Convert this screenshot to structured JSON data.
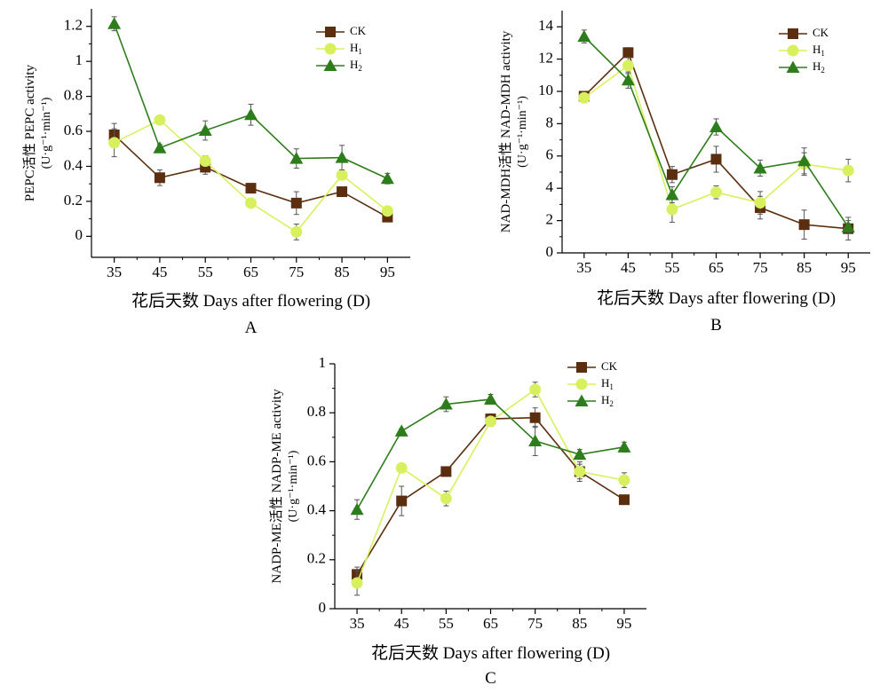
{
  "chart_data": [
    {
      "type": "line",
      "panel_label": "A",
      "xlabel": "花后天数  Days after flowering (D)",
      "ylabel": "PEPC活性 PEPC activity",
      "ylabel_unit": "(U·g⁻¹·min⁻¹)",
      "x": [
        35,
        45,
        55,
        65,
        75,
        85,
        95
      ],
      "xlim": [
        30,
        100
      ],
      "ylim": [
        -0.12,
        1.3
      ],
      "yticks": [
        0,
        0.2,
        0.4,
        0.6,
        0.8,
        1,
        1.2
      ],
      "ytick_labels": [
        "0",
        "0.2",
        "0.4",
        "0.6",
        "0.8",
        "1",
        "1.2"
      ],
      "legend_position": "top-right",
      "series": [
        {
          "name": "CK",
          "color": "#5a2e0e",
          "marker": "square",
          "values": [
            0.58,
            0.335,
            0.395,
            0.275,
            0.19,
            0.255,
            0.11
          ],
          "errors": [
            0.065,
            0.045,
            0.04,
            0.015,
            0.065,
            0.01,
            0.02
          ]
        },
        {
          "name": "H1",
          "color": "#d9f05e",
          "marker": "circle",
          "values": [
            0.535,
            0.665,
            0.43,
            0.19,
            0.025,
            0.35,
            0.145
          ],
          "errors": [
            0.08,
            0.02,
            0.03,
            0.015,
            0.045,
            0.02,
            0.025
          ]
        },
        {
          "name": "H2",
          "color": "#2e7d1c",
          "marker": "triangle",
          "values": [
            1.215,
            0.505,
            0.605,
            0.695,
            0.445,
            0.45,
            0.33
          ],
          "errors": [
            0.04,
            0.02,
            0.055,
            0.06,
            0.055,
            0.07,
            0.03
          ]
        }
      ]
    },
    {
      "type": "line",
      "panel_label": "B",
      "xlabel": "花后天数  Days after flowering (D)",
      "ylabel": "NAD-MDH活性 NAD-MDH activity",
      "ylabel_unit": "(U·g⁻¹·min⁻¹)",
      "x": [
        35,
        45,
        55,
        65,
        75,
        85,
        95
      ],
      "xlim": [
        30,
        100
      ],
      "ylim": [
        0,
        15
      ],
      "yticks": [
        0,
        2,
        4,
        6,
        8,
        10,
        12,
        14
      ],
      "ytick_labels": [
        "0",
        "2",
        "4",
        "6",
        "8",
        "10",
        "12",
        "14"
      ],
      "legend_position": "top-right",
      "series": [
        {
          "name": "CK",
          "color": "#5a2e0e",
          "marker": "square",
          "values": [
            9.7,
            12.4,
            4.85,
            5.8,
            2.8,
            1.75,
            1.5
          ],
          "errors": [
            0.3,
            0.3,
            0.5,
            0.8,
            0.7,
            0.9,
            0.7
          ]
        },
        {
          "name": "H1",
          "color": "#d9f05e",
          "marker": "circle",
          "values": [
            9.6,
            11.6,
            2.7,
            3.75,
            3.1,
            5.5,
            5.1
          ],
          "errors": [
            0.3,
            0.5,
            0.8,
            0.4,
            0.7,
            0.7,
            0.7
          ]
        },
        {
          "name": "H2",
          "color": "#2e7d1c",
          "marker": "triangle",
          "values": [
            13.4,
            10.7,
            3.6,
            7.8,
            5.25,
            5.7,
            1.6
          ],
          "errors": [
            0.4,
            0.5,
            0.5,
            0.5,
            0.5,
            0.8,
            0.4
          ]
        }
      ]
    },
    {
      "type": "line",
      "panel_label": "C",
      "xlabel": "花后天数  Days after flowering (D)",
      "ylabel": "NADP-ME活性 NADP-ME activity",
      "ylabel_unit": "(U·g⁻¹·min⁻¹)",
      "x": [
        35,
        45,
        55,
        65,
        75,
        85,
        95
      ],
      "xlim": [
        30,
        100
      ],
      "ylim": [
        0,
        1
      ],
      "yticks": [
        0,
        0.2,
        0.4,
        0.6,
        0.8,
        1
      ],
      "ytick_labels": [
        "0",
        "0.2",
        "0.4",
        "0.6",
        "0.8",
        "1"
      ],
      "legend_position": "top-right",
      "series": [
        {
          "name": "CK",
          "color": "#5a2e0e",
          "marker": "square",
          "values": [
            0.14,
            0.44,
            0.56,
            0.775,
            0.78,
            0.56,
            0.445
          ],
          "errors": [
            0.03,
            0.06,
            0.01,
            0.02,
            0.04,
            0.04,
            0.01
          ]
        },
        {
          "name": "H1",
          "color": "#d9f05e",
          "marker": "circle",
          "values": [
            0.105,
            0.575,
            0.45,
            0.765,
            0.895,
            0.56,
            0.525
          ],
          "errors": [
            0.05,
            0.01,
            0.03,
            0.02,
            0.03,
            0.03,
            0.03
          ]
        },
        {
          "name": "H2",
          "color": "#2e7d1c",
          "marker": "triangle",
          "values": [
            0.405,
            0.725,
            0.835,
            0.855,
            0.685,
            0.63,
            0.66
          ],
          "errors": [
            0.04,
            0.01,
            0.03,
            0.02,
            0.06,
            0.02,
            0.02
          ]
        }
      ]
    }
  ]
}
